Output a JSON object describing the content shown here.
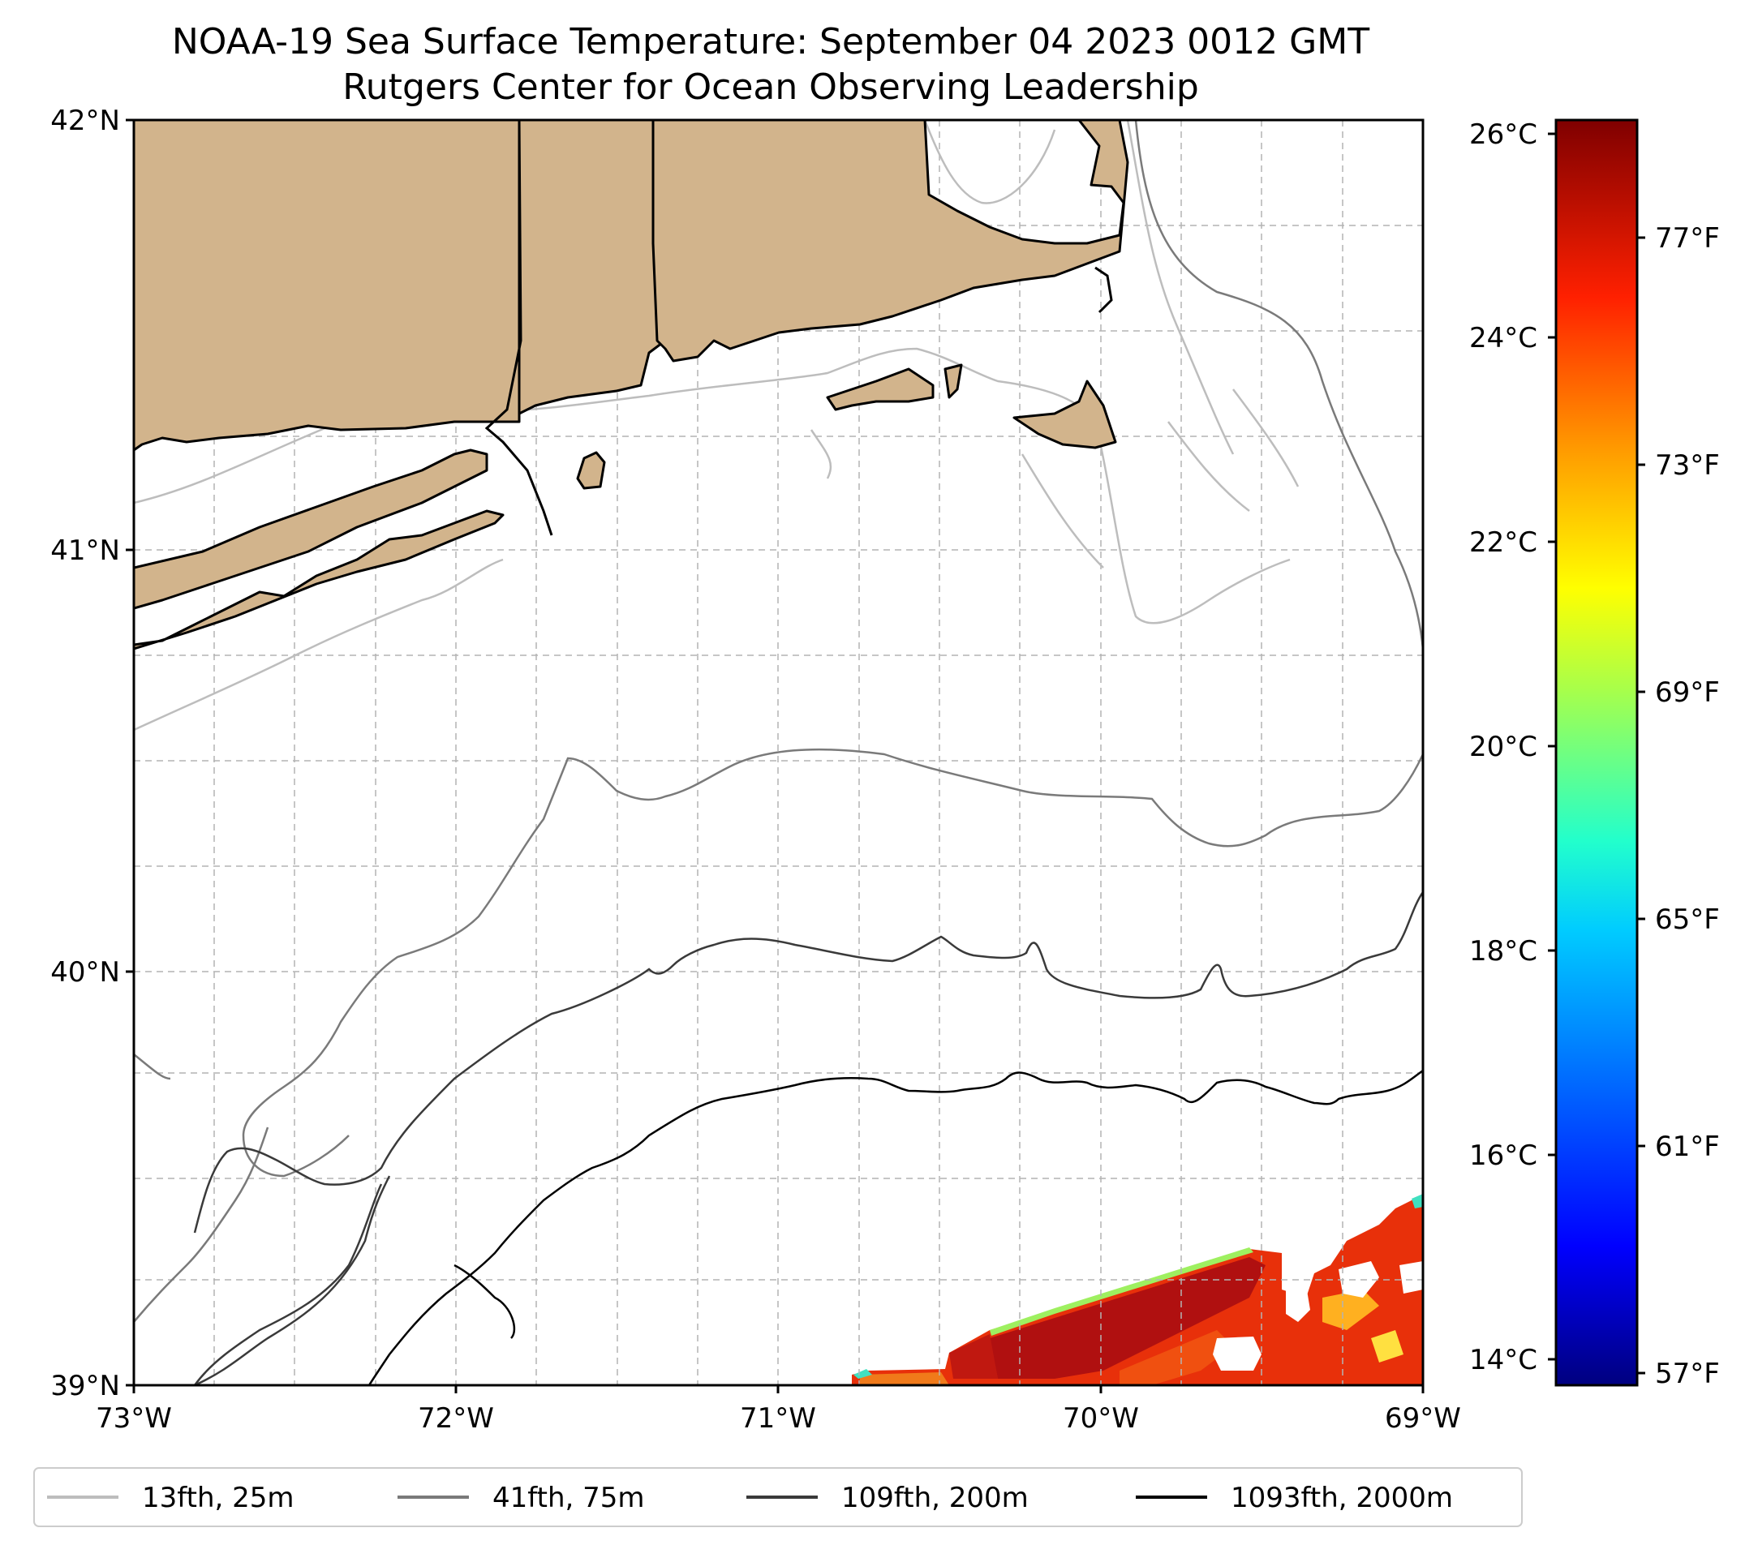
{
  "title": {
    "line1": "NOAA-19 Sea Surface Temperature: September 04 2023 0012 GMT",
    "line2": "Rutgers Center for Ocean Observing Leadership"
  },
  "map": {
    "lat_ticks": [
      "42°N",
      "41°N",
      "40°N",
      "39°N"
    ],
    "lon_ticks": [
      "73°W",
      "72°W",
      "71°W",
      "70°W",
      "69°W"
    ]
  },
  "colorbar": {
    "celsius_ticks": [
      "26°C",
      "24°C",
      "22°C",
      "20°C",
      "18°C",
      "16°C",
      "14°C"
    ],
    "fahrenheit_ticks": [
      "77°F",
      "73°F",
      "69°F",
      "65°F",
      "61°F",
      "57°F"
    ],
    "colormap": "jet",
    "stops": [
      "#00007f",
      "#0000ff",
      "#007fff",
      "#00ffff",
      "#7fff7f",
      "#ffff00",
      "#ff7f00",
      "#ff0000",
      "#7f0000"
    ]
  },
  "legend": {
    "items": [
      {
        "label": "13fth, 25m",
        "color": "#bdbdbd"
      },
      {
        "label": "41fth, 75m",
        "color": "#7a7a7a"
      },
      {
        "label": "109fth, 200m",
        "color": "#3a3a3a"
      },
      {
        "label": "1093fth, 2000m",
        "color": "#000000"
      }
    ]
  },
  "colors": {
    "land": "#d2b48c",
    "sst_warm": "#e8300a",
    "sst_core": "#b01010",
    "sst_edge": "#9ef060"
  }
}
